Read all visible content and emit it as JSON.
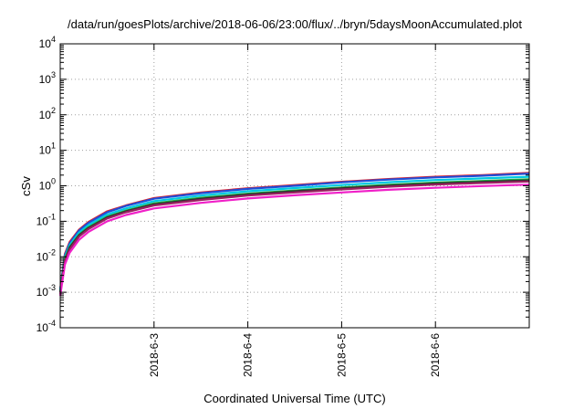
{
  "chart_data": {
    "type": "line",
    "title": "/data/run/goesPlots/archive/2018-06-06/23:00/flux/../bryn/5daysMoonAccumulated.plot",
    "xlabel": "Coordinated Universal Time (UTC)",
    "ylabel": "cSv",
    "yscale": "log",
    "ylim": [
      0.0001,
      10000
    ],
    "xlim": [
      "2018-06-02T00:00",
      "2018-06-07T00:00"
    ],
    "grid": true,
    "legend": "none",
    "y_ticks": [
      {
        "base": "10",
        "exp": "-4",
        "value": 0.0001
      },
      {
        "base": "10",
        "exp": "-3",
        "value": 0.001
      },
      {
        "base": "10",
        "exp": "-2",
        "value": 0.01
      },
      {
        "base": "10",
        "exp": "-1",
        "value": 0.1
      },
      {
        "base": "10",
        "exp": "0",
        "value": 1
      },
      {
        "base": "10",
        "exp": "1",
        "value": 10
      },
      {
        "base": "10",
        "exp": "2",
        "value": 100
      },
      {
        "base": "10",
        "exp": "3",
        "value": 1000
      },
      {
        "base": "10",
        "exp": "4",
        "value": 10000
      }
    ],
    "x_ticks": [
      {
        "label": "2018-6-3",
        "value": "2018-06-03T00:00"
      },
      {
        "label": "2018-6-4",
        "value": "2018-06-04T00:00"
      },
      {
        "label": "2018-6-5",
        "value": "2018-06-05T00:00"
      },
      {
        "label": "2018-6-6",
        "value": "2018-06-06T00:00"
      }
    ],
    "x": [
      "2018-06-02T00:00",
      "2018-06-02T01:12",
      "2018-06-02T02:24",
      "2018-06-02T04:48",
      "2018-06-02T07:12",
      "2018-06-02T12:00",
      "2018-06-02T16:48",
      "2018-06-03T00:00",
      "2018-06-03T12:00",
      "2018-06-04T00:00",
      "2018-06-04T12:00",
      "2018-06-05T00:00",
      "2018-06-05T12:00",
      "2018-06-06T00:00",
      "2018-06-06T12:00",
      "2018-06-07T00:00"
    ],
    "series": [
      {
        "color": "#e0202a",
        "values": [
          0.0012,
          0.012,
          0.026,
          0.058,
          0.095,
          0.19,
          0.28,
          0.45,
          0.65,
          0.85,
          1.05,
          1.3,
          1.55,
          1.8,
          2.0,
          2.3
        ]
      },
      {
        "color": "#1e4fd8",
        "values": [
          0.0012,
          0.011,
          0.024,
          0.055,
          0.09,
          0.18,
          0.27,
          0.43,
          0.62,
          0.82,
          1.0,
          1.25,
          1.5,
          1.72,
          1.92,
          2.2
        ]
      },
      {
        "color": "#00c8e0",
        "values": [
          0.0011,
          0.01,
          0.021,
          0.048,
          0.078,
          0.155,
          0.23,
          0.37,
          0.53,
          0.7,
          0.86,
          1.05,
          1.26,
          1.45,
          1.62,
          1.8
        ]
      },
      {
        "color": "#20b040",
        "values": [
          0.001,
          0.009,
          0.019,
          0.042,
          0.068,
          0.135,
          0.2,
          0.32,
          0.46,
          0.6,
          0.74,
          0.9,
          1.07,
          1.23,
          1.37,
          1.52
        ]
      },
      {
        "color": "#303030",
        "values": [
          0.001,
          0.008,
          0.018,
          0.04,
          0.064,
          0.128,
          0.19,
          0.3,
          0.43,
          0.57,
          0.7,
          0.85,
          1.01,
          1.16,
          1.29,
          1.42
        ]
      },
      {
        "color": "#9a2060",
        "values": [
          0.0009,
          0.0075,
          0.016,
          0.037,
          0.06,
          0.12,
          0.18,
          0.28,
          0.4,
          0.53,
          0.65,
          0.79,
          0.94,
          1.08,
          1.2,
          1.32
        ]
      },
      {
        "color": "#f020c8",
        "values": [
          0.0008,
          0.006,
          0.013,
          0.03,
          0.05,
          0.1,
          0.15,
          0.23,
          0.33,
          0.44,
          0.54,
          0.65,
          0.77,
          0.88,
          0.98,
          1.08
        ]
      }
    ]
  }
}
